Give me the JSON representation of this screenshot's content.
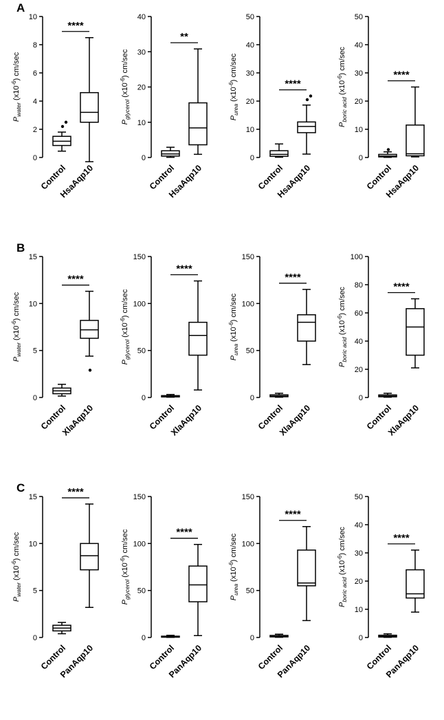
{
  "style": {
    "stroke": "#000000",
    "background": "#ffffff",
    "box_fill": "#ffffff"
  },
  "figure_rows": [
    {
      "label": "A",
      "treatment": "HsaAqp10",
      "panels": [
        0,
        1,
        2,
        3
      ]
    },
    {
      "label": "B",
      "treatment": "XlaAqp10",
      "panels": [
        4,
        5,
        6,
        7
      ]
    },
    {
      "label": "C",
      "treatment": "PanAqp10",
      "panels": [
        8,
        9,
        10,
        11
      ]
    }
  ],
  "chart_data": [
    {
      "type": "box",
      "panel": "A1",
      "ylabel": "Pwater (x10-6) cm/sec",
      "ylabel_parts": {
        "symbol": "P",
        "sub": "water",
        "exp": "-6",
        "unit": "cm/sec"
      },
      "ylim": [
        0,
        10
      ],
      "ytick_step": 2,
      "significance": "****",
      "categories": [
        "Control",
        "HsaAqp10"
      ],
      "boxes": [
        {
          "whislo": 0.45,
          "q1": 0.85,
          "med": 1.15,
          "q3": 1.5,
          "whishi": 1.8,
          "outliers": [
            2.2,
            2.5
          ]
        },
        {
          "whislo": -0.3,
          "q1": 2.5,
          "med": 3.2,
          "q3": 4.6,
          "whishi": 8.5,
          "outliers": []
        }
      ]
    },
    {
      "type": "box",
      "panel": "A2",
      "ylabel": "Pglycerol (x10-6) cm/sec",
      "ylabel_parts": {
        "symbol": "P",
        "sub": "glycerol",
        "exp": "-6",
        "unit": "cm/sec"
      },
      "ylim": [
        0,
        40
      ],
      "ytick_step": 10,
      "significance": "**",
      "categories": [
        "Control",
        "HsaAqp10"
      ],
      "boxes": [
        {
          "whislo": 0.05,
          "q1": 0.4,
          "med": 1.0,
          "q3": 1.9,
          "whishi": 2.9,
          "outliers": []
        },
        {
          "whislo": 0.9,
          "q1": 3.6,
          "med": 8.4,
          "q3": 15.5,
          "whishi": 30.8,
          "outliers": []
        }
      ]
    },
    {
      "type": "box",
      "panel": "A3",
      "ylabel": "Purea (x10-6) cm/sec",
      "ylabel_parts": {
        "symbol": "P",
        "sub": "urea",
        "exp": "-6",
        "unit": "cm/sec"
      },
      "ylim": [
        0,
        50
      ],
      "ytick_step": 10,
      "significance": "****",
      "categories": [
        "Control",
        "HsaAqp10"
      ],
      "boxes": [
        {
          "whislo": 0.1,
          "q1": 0.4,
          "med": 1.1,
          "q3": 2.4,
          "whishi": 4.8,
          "outliers": []
        },
        {
          "whislo": 1.2,
          "q1": 8.8,
          "med": 11.0,
          "q3": 12.6,
          "whishi": 18.6,
          "outliers": [
            20.5,
            21.8
          ]
        }
      ]
    },
    {
      "type": "box",
      "panel": "A4",
      "ylabel": "Pboric acid (x10-6) cm/sec",
      "ylabel_parts": {
        "symbol": "P",
        "sub": "boric acid",
        "exp": "-6",
        "unit": "cm/sec"
      },
      "ylim": [
        0,
        50
      ],
      "ytick_step": 10,
      "significance": "****",
      "categories": [
        "Control",
        "HsaAqp10"
      ],
      "boxes": [
        {
          "whislo": 0.05,
          "q1": 0.2,
          "med": 0.5,
          "q3": 1.1,
          "whishi": 2.0,
          "outliers": [
            2.8
          ]
        },
        {
          "whislo": 0.2,
          "q1": 0.6,
          "med": 1.3,
          "q3": 11.5,
          "whishi": 25.0,
          "outliers": []
        }
      ]
    },
    {
      "type": "box",
      "panel": "B1",
      "ylabel": "Pwater (x10-6) cm/sec",
      "ylabel_parts": {
        "symbol": "P",
        "sub": "water",
        "exp": "-6",
        "unit": "cm/sec"
      },
      "ylim": [
        0,
        15
      ],
      "ytick_step": 5,
      "significance": "****",
      "categories": [
        "Control",
        "XlaAqp10"
      ],
      "boxes": [
        {
          "whislo": 0.15,
          "q1": 0.4,
          "med": 0.7,
          "q3": 1.0,
          "whishi": 1.4,
          "outliers": []
        },
        {
          "whislo": 4.4,
          "q1": 6.3,
          "med": 7.2,
          "q3": 8.2,
          "whishi": 11.3,
          "outliers": [
            2.9
          ]
        }
      ]
    },
    {
      "type": "box",
      "panel": "B2",
      "ylabel": "Pglycerol (x10-6) cm/sec",
      "ylabel_parts": {
        "symbol": "P",
        "sub": "glycerol",
        "exp": "-6",
        "unit": "cm/sec"
      },
      "ylim": [
        0,
        150
      ],
      "ytick_step": 50,
      "significance": "****",
      "categories": [
        "Control",
        "XlaAqp10"
      ],
      "boxes": [
        {
          "whislo": 0.3,
          "q1": 0.6,
          "med": 1.2,
          "q3": 2.0,
          "whishi": 3.2,
          "outliers": []
        },
        {
          "whislo": 8,
          "q1": 45,
          "med": 66,
          "q3": 80,
          "whishi": 124,
          "outliers": []
        }
      ]
    },
    {
      "type": "box",
      "panel": "B3",
      "ylabel": "Purea (x10-6) cm/sec",
      "ylabel_parts": {
        "symbol": "P",
        "sub": "urea",
        "exp": "-6",
        "unit": "cm/sec"
      },
      "ylim": [
        0,
        150
      ],
      "ytick_step": 50,
      "significance": "****",
      "categories": [
        "Control",
        "XlaAqp10"
      ],
      "boxes": [
        {
          "whislo": 0.3,
          "q1": 0.8,
          "med": 1.5,
          "q3": 2.8,
          "whishi": 4.5,
          "outliers": []
        },
        {
          "whislo": 35,
          "q1": 60,
          "med": 80,
          "q3": 88,
          "whishi": 115,
          "outliers": []
        }
      ]
    },
    {
      "type": "box",
      "panel": "B4",
      "ylabel": "Pboric acid (x10-6) cm/sec",
      "ylabel_parts": {
        "symbol": "P",
        "sub": "boric acid",
        "exp": "-6",
        "unit": "cm/sec"
      },
      "ylim": [
        0,
        100
      ],
      "ytick_step": 20,
      "significance": "****",
      "categories": [
        "Control",
        "XlaAqp10"
      ],
      "boxes": [
        {
          "whislo": 0.2,
          "q1": 0.5,
          "med": 1.0,
          "q3": 1.8,
          "whishi": 3.0,
          "outliers": []
        },
        {
          "whislo": 21,
          "q1": 30,
          "med": 50,
          "q3": 63,
          "whishi": 70,
          "outliers": []
        }
      ]
    },
    {
      "type": "box",
      "panel": "C1",
      "ylabel": "Pwater (x10-6) cm/sec",
      "ylabel_parts": {
        "symbol": "P",
        "sub": "water",
        "exp": "-6",
        "unit": "cm/sec"
      },
      "ylim": [
        0,
        15
      ],
      "ytick_step": 5,
      "significance": "****",
      "categories": [
        "Control",
        "PanAqp10"
      ],
      "boxes": [
        {
          "whislo": 0.4,
          "q1": 0.7,
          "med": 1.0,
          "q3": 1.3,
          "whishi": 1.6,
          "outliers": []
        },
        {
          "whislo": 3.2,
          "q1": 7.2,
          "med": 8.7,
          "q3": 10.0,
          "whishi": 14.2,
          "outliers": []
        }
      ]
    },
    {
      "type": "box",
      "panel": "C2",
      "ylabel": "Pglycerol (x10-6) cm/sec",
      "ylabel_parts": {
        "symbol": "P",
        "sub": "glycerol",
        "exp": "-6",
        "unit": "cm/sec"
      },
      "ylim": [
        0,
        150
      ],
      "ytick_step": 50,
      "significance": "****",
      "categories": [
        "Control",
        "PanAqp10"
      ],
      "boxes": [
        {
          "whislo": 0.1,
          "q1": 0.3,
          "med": 0.8,
          "q3": 1.4,
          "whishi": 2.3,
          "outliers": []
        },
        {
          "whislo": 2,
          "q1": 38,
          "med": 56,
          "q3": 76,
          "whishi": 99,
          "outliers": []
        }
      ]
    },
    {
      "type": "box",
      "panel": "C3",
      "ylabel": "Purea (x10-6) cm/sec",
      "ylabel_parts": {
        "symbol": "P",
        "sub": "urea",
        "exp": "-6",
        "unit": "cm/sec"
      },
      "ylim": [
        0,
        150
      ],
      "ytick_step": 50,
      "significance": "****",
      "categories": [
        "Control",
        "PanAqp10"
      ],
      "boxes": [
        {
          "whislo": 0.2,
          "q1": 0.6,
          "med": 1.2,
          "q3": 2.2,
          "whishi": 3.5,
          "outliers": []
        },
        {
          "whislo": 18,
          "q1": 55,
          "med": 58,
          "q3": 93,
          "whishi": 118,
          "outliers": []
        }
      ]
    },
    {
      "type": "box",
      "panel": "C4",
      "ylabel": "Pboric acid (x10-6) cm/sec",
      "ylabel_parts": {
        "symbol": "P",
        "sub": "boric acid",
        "exp": "-6",
        "unit": "cm/sec"
      },
      "ylim": [
        0,
        50
      ],
      "ytick_step": 10,
      "significance": "****",
      "categories": [
        "Control",
        "PanAqp10"
      ],
      "boxes": [
        {
          "whislo": 0.05,
          "q1": 0.15,
          "med": 0.4,
          "q3": 0.8,
          "whishi": 1.3,
          "outliers": []
        },
        {
          "whislo": 9,
          "q1": 14,
          "med": 15.5,
          "q3": 24,
          "whishi": 31,
          "outliers": []
        }
      ]
    }
  ]
}
